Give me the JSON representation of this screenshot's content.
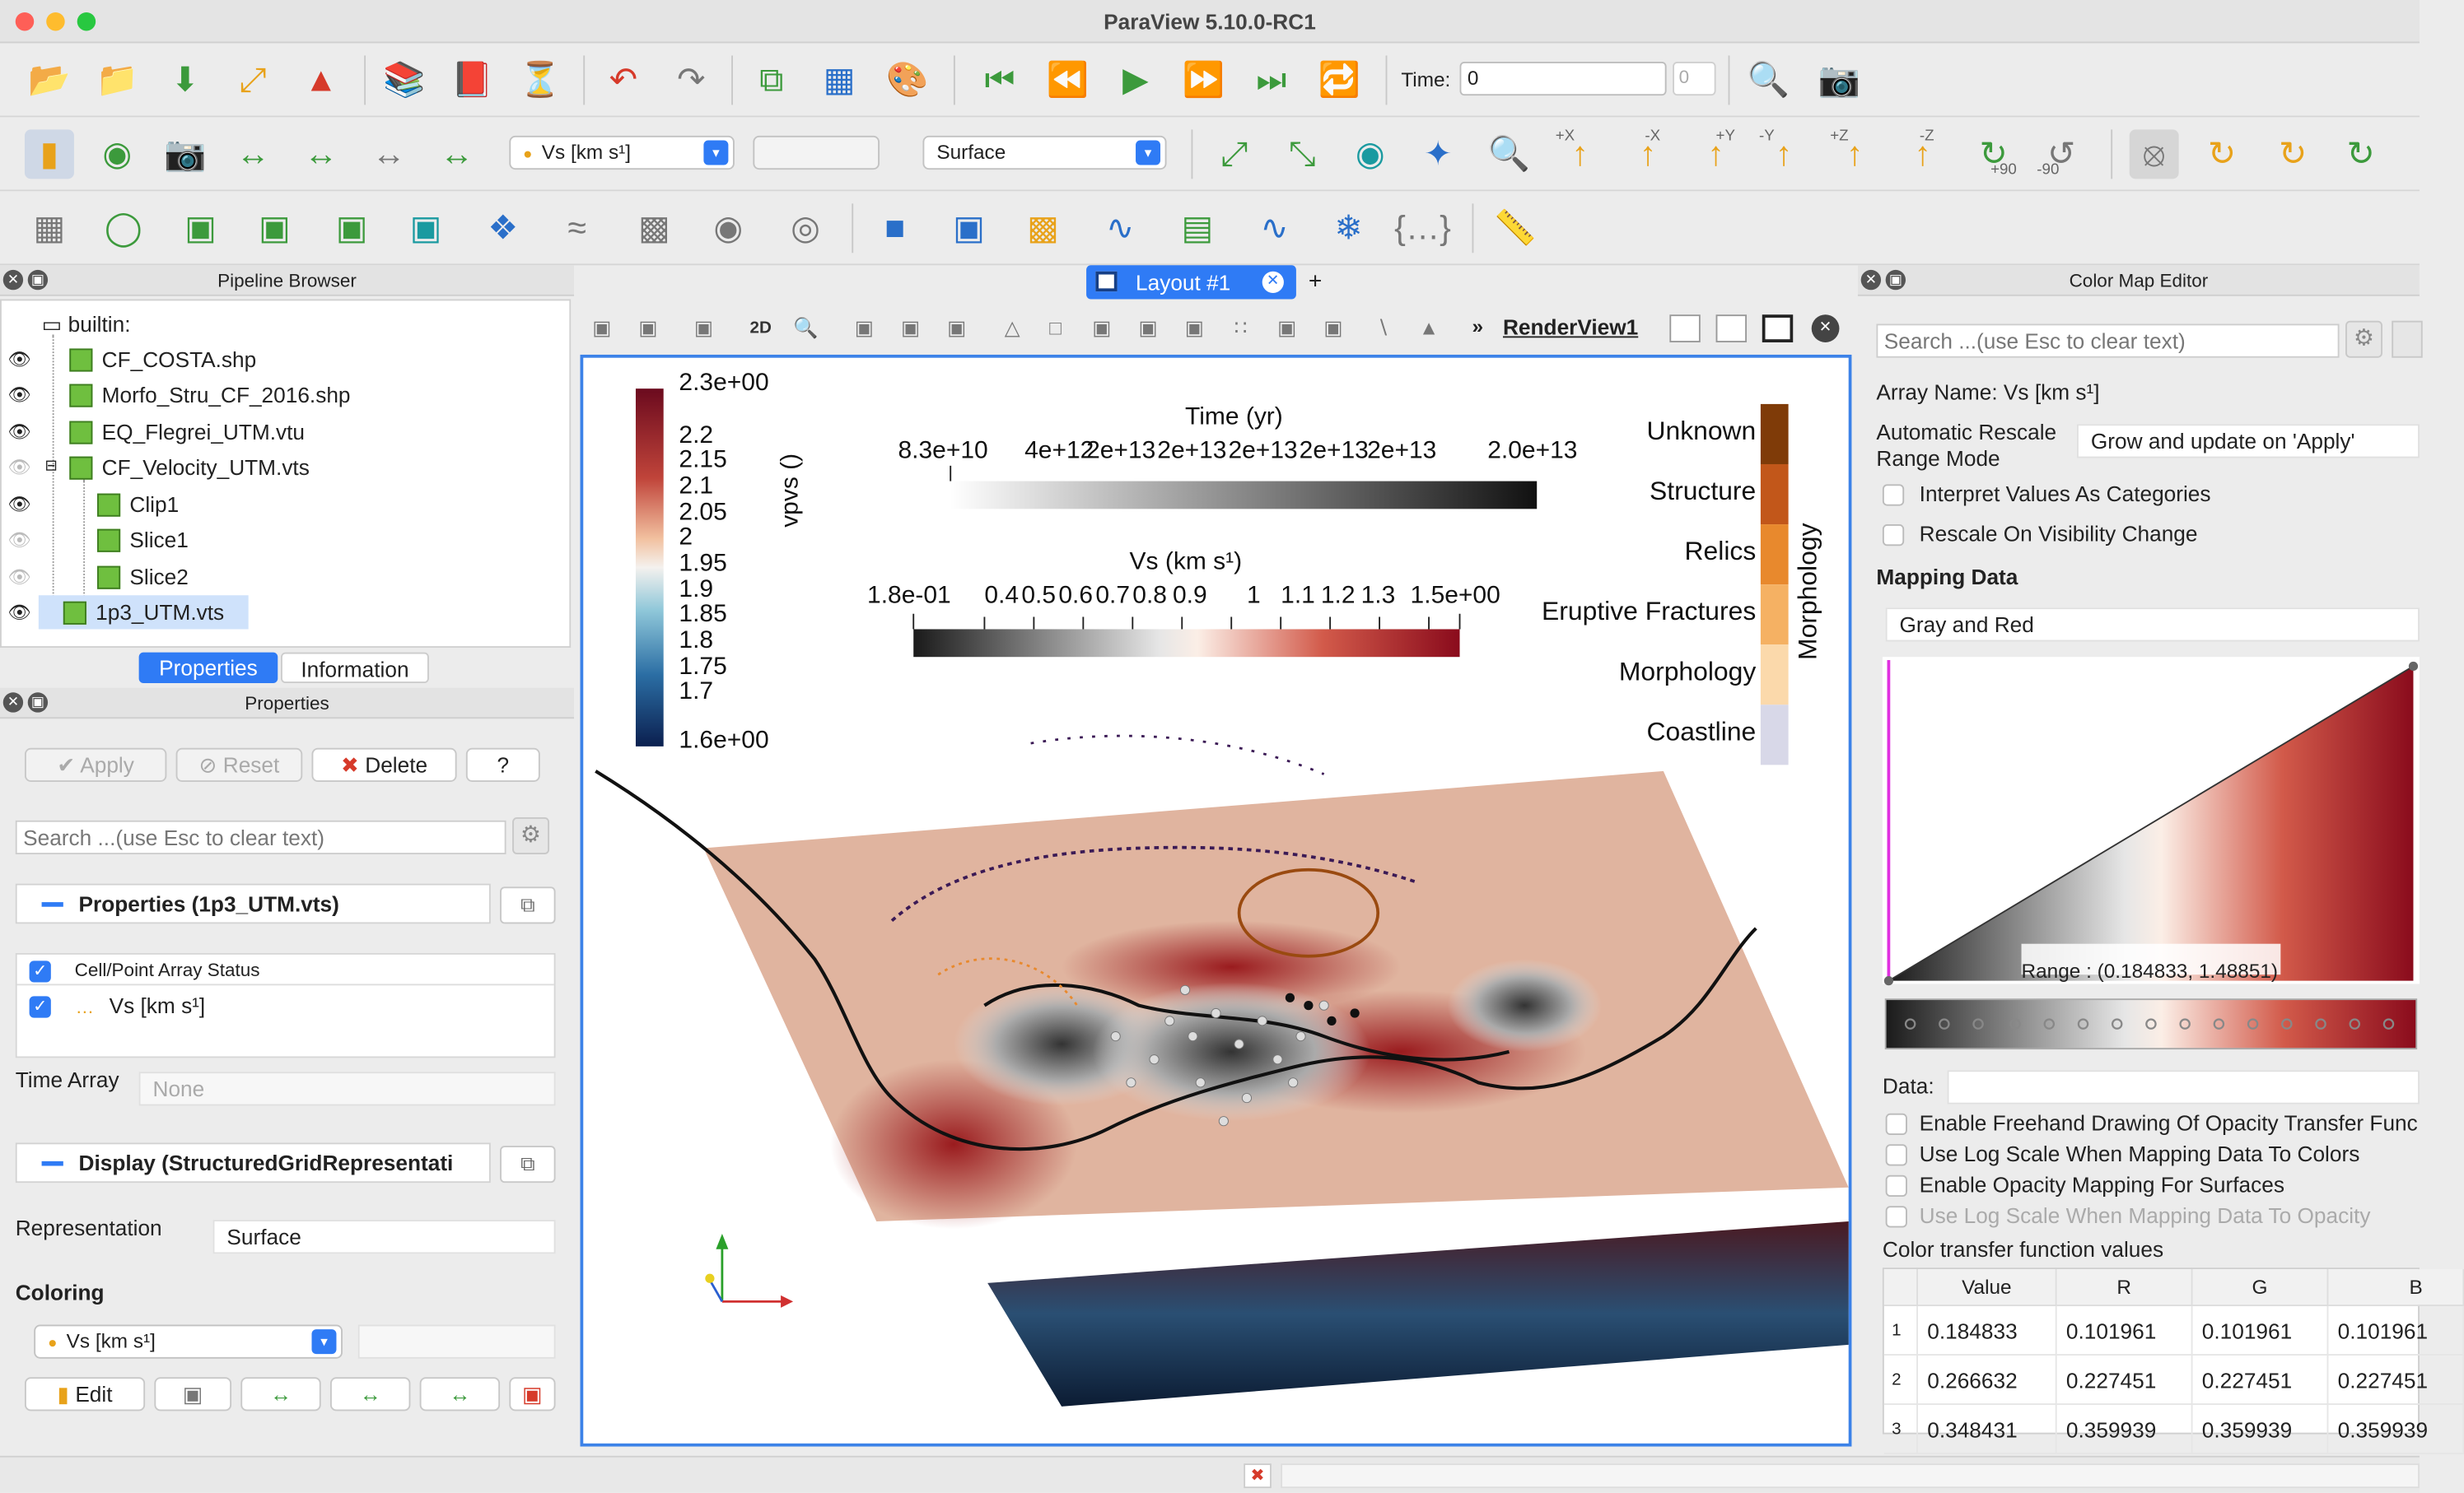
{
  "app": {
    "title": "ParaView 5.10.0-RC1"
  },
  "toolbar": {
    "time_label": "Time:",
    "time_value": "0",
    "time_index": "0",
    "array_selector": "Vs  [km s¹]",
    "component_selector": "",
    "representation_selector": "Surface",
    "view_labels": {
      "px": "+X",
      "mx": "-X",
      "py": "+Y",
      "my": "-Y",
      "pz": "+Z",
      "mz": "-Z",
      "rot_p90": "+90",
      "rot_m90": "-90"
    },
    "view_2d": "2D"
  },
  "pipeline": {
    "title": "Pipeline Browser",
    "root": "builtin:",
    "items": [
      {
        "label": "CF_COSTA.shp",
        "visible": true
      },
      {
        "label": "Morfo_Stru_CF_2016.shp",
        "visible": true
      },
      {
        "label": "EQ_Flegrei_UTM.vtu",
        "visible": true
      },
      {
        "label": "CF_Velocity_UTM.vts",
        "visible": false
      },
      {
        "label": "Clip1",
        "visible": true
      },
      {
        "label": "Slice1",
        "visible": false
      },
      {
        "label": "Slice2",
        "visible": false
      },
      {
        "label": "1p3_UTM.vts",
        "visible": true
      }
    ]
  },
  "tabs": {
    "properties": "Properties",
    "information": "Information"
  },
  "properties": {
    "title": "Properties",
    "apply": "Apply",
    "reset": "Reset",
    "delete": "Delete",
    "help": "?",
    "search_placeholder": "Search ...(use Esc to clear text)",
    "section_properties": "Properties (1p3_UTM.vts)",
    "array_status_header": "Cell/Point Array Status",
    "array_name": "Vs  [km s¹]",
    "time_array_label": "Time Array",
    "time_array_value": "None",
    "section_display": "Display (StructuredGridRepresentati",
    "representation_label": "Representation",
    "representation_value": "Surface",
    "coloring_label": "Coloring",
    "coloring_value": "Vs  [km s¹]",
    "edit": "Edit"
  },
  "layout": {
    "tab": "Layout #1",
    "plus": "+",
    "view_name": "RenderView1"
  },
  "render": {
    "vpvs": {
      "title": "vpvs ()",
      "ticks": [
        "2.3e+00",
        "2.2",
        "2.15",
        "2.1",
        "2.05",
        "2",
        "1.95",
        "1.9",
        "1.85",
        "1.8",
        "1.75",
        "1.7",
        "1.6e+00"
      ]
    },
    "time": {
      "title": "Time  (yr)",
      "ticks": [
        "8.3e+10",
        "4e+12",
        "2e+13",
        "2e+13",
        "2e+13",
        "2e+13",
        "2e+13",
        "2.0e+13"
      ]
    },
    "vs": {
      "title": "Vs  (km s¹)",
      "ticks": [
        "1.8e-01",
        "0.4",
        "0.5",
        "0.6",
        "0.7",
        "0.8",
        "0.9",
        "1",
        "1.1",
        "1.2",
        "1.3",
        "1.5e+00"
      ]
    },
    "morphology": {
      "title": "Morphology",
      "categories": [
        "Unknown",
        "Structure",
        "Relics",
        "Eruptive Fractures",
        "Morphology",
        "Coastline"
      ],
      "colors": [
        "#7f3b08",
        "#c2571a",
        "#e8892d",
        "#f5b163",
        "#fbd9ab",
        "#d8d8e8"
      ]
    }
  },
  "colormap": {
    "title": "Color Map Editor",
    "search_placeholder": "Search ...(use Esc to clear text)",
    "array_name": "Array Name: Vs  [km s¹]",
    "auto_rescale_label": "Automatic Rescale Range Mode",
    "auto_rescale_value": "Grow and update on 'Apply'",
    "interpret_categories": "Interpret Values As Categories",
    "rescale_visibility": "Rescale On Visibility Change",
    "mapping_data": "Mapping Data",
    "preset": "Gray and Red",
    "range": "Range : (0.184833, 1.48851)",
    "data_label": "Data:",
    "opt_freehand": "Enable Freehand Drawing Of Opacity Transfer Func",
    "opt_log_colors": "Use Log Scale When Mapping Data To Colors",
    "opt_opacity_surfaces": "Enable Opacity Mapping For Surfaces",
    "opt_log_opacity": "Use Log Scale When Mapping Data To Opacity",
    "ctf_label": "Color transfer function values",
    "columns": [
      "Value",
      "R",
      "G",
      "B"
    ],
    "rows": [
      {
        "idx": "1",
        "value": "0.184833",
        "r": "0.101961",
        "g": "0.101961",
        "b": "0.101961"
      },
      {
        "idx": "2",
        "value": "0.266632",
        "r": "0.227451",
        "g": "0.227451",
        "b": "0.227451"
      },
      {
        "idx": "3",
        "value": "0.348431",
        "r": "0.359939",
        "g": "0.359939",
        "b": "0.359939"
      }
    ]
  }
}
